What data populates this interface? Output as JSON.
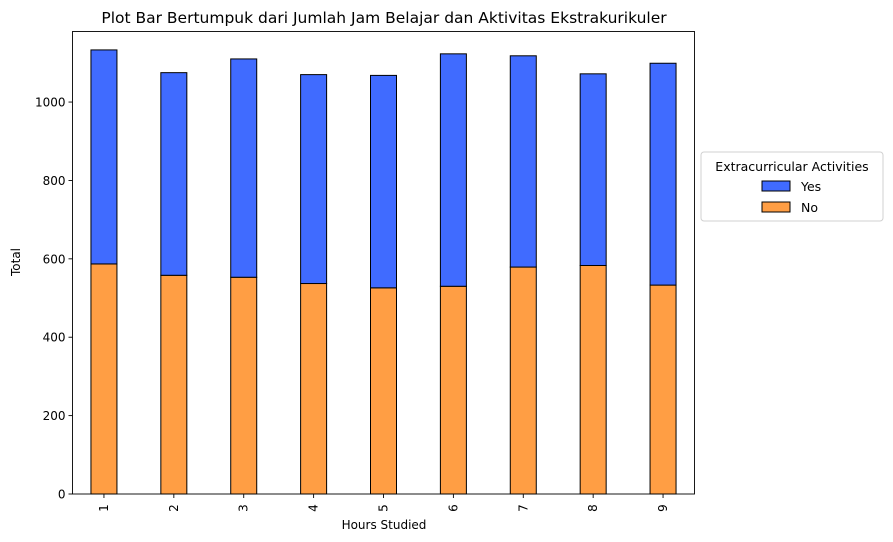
{
  "chart_data": {
    "type": "bar",
    "stacked": true,
    "title": "Plot Bar Bertumpuk dari Jumlah Jam Belajar dan Aktivitas Ekstrakurikuler",
    "xlabel": "Hours Studied",
    "ylabel": "Total",
    "x": [
      1,
      2,
      3,
      4,
      5,
      6,
      7,
      8,
      9
    ],
    "xlim": [
      0.55,
      9.45
    ],
    "ylim": [
      0,
      1180
    ],
    "yticks": [
      0,
      200,
      400,
      600,
      800,
      1000
    ],
    "xtick_rotation": -90,
    "grid": false,
    "legend": {
      "title": "Extracurricular Activities",
      "placement": "center-right-outside"
    },
    "series": [
      {
        "name": "No",
        "color": "#ff9e44",
        "values": [
          587,
          558,
          553,
          537,
          526,
          530,
          579,
          583,
          533
        ]
      },
      {
        "name": "Yes",
        "color": "#406bff",
        "values": [
          546,
          517,
          557,
          533,
          542,
          593,
          539,
          489,
          566
        ]
      }
    ],
    "legend_order": [
      "Yes",
      "No"
    ]
  }
}
